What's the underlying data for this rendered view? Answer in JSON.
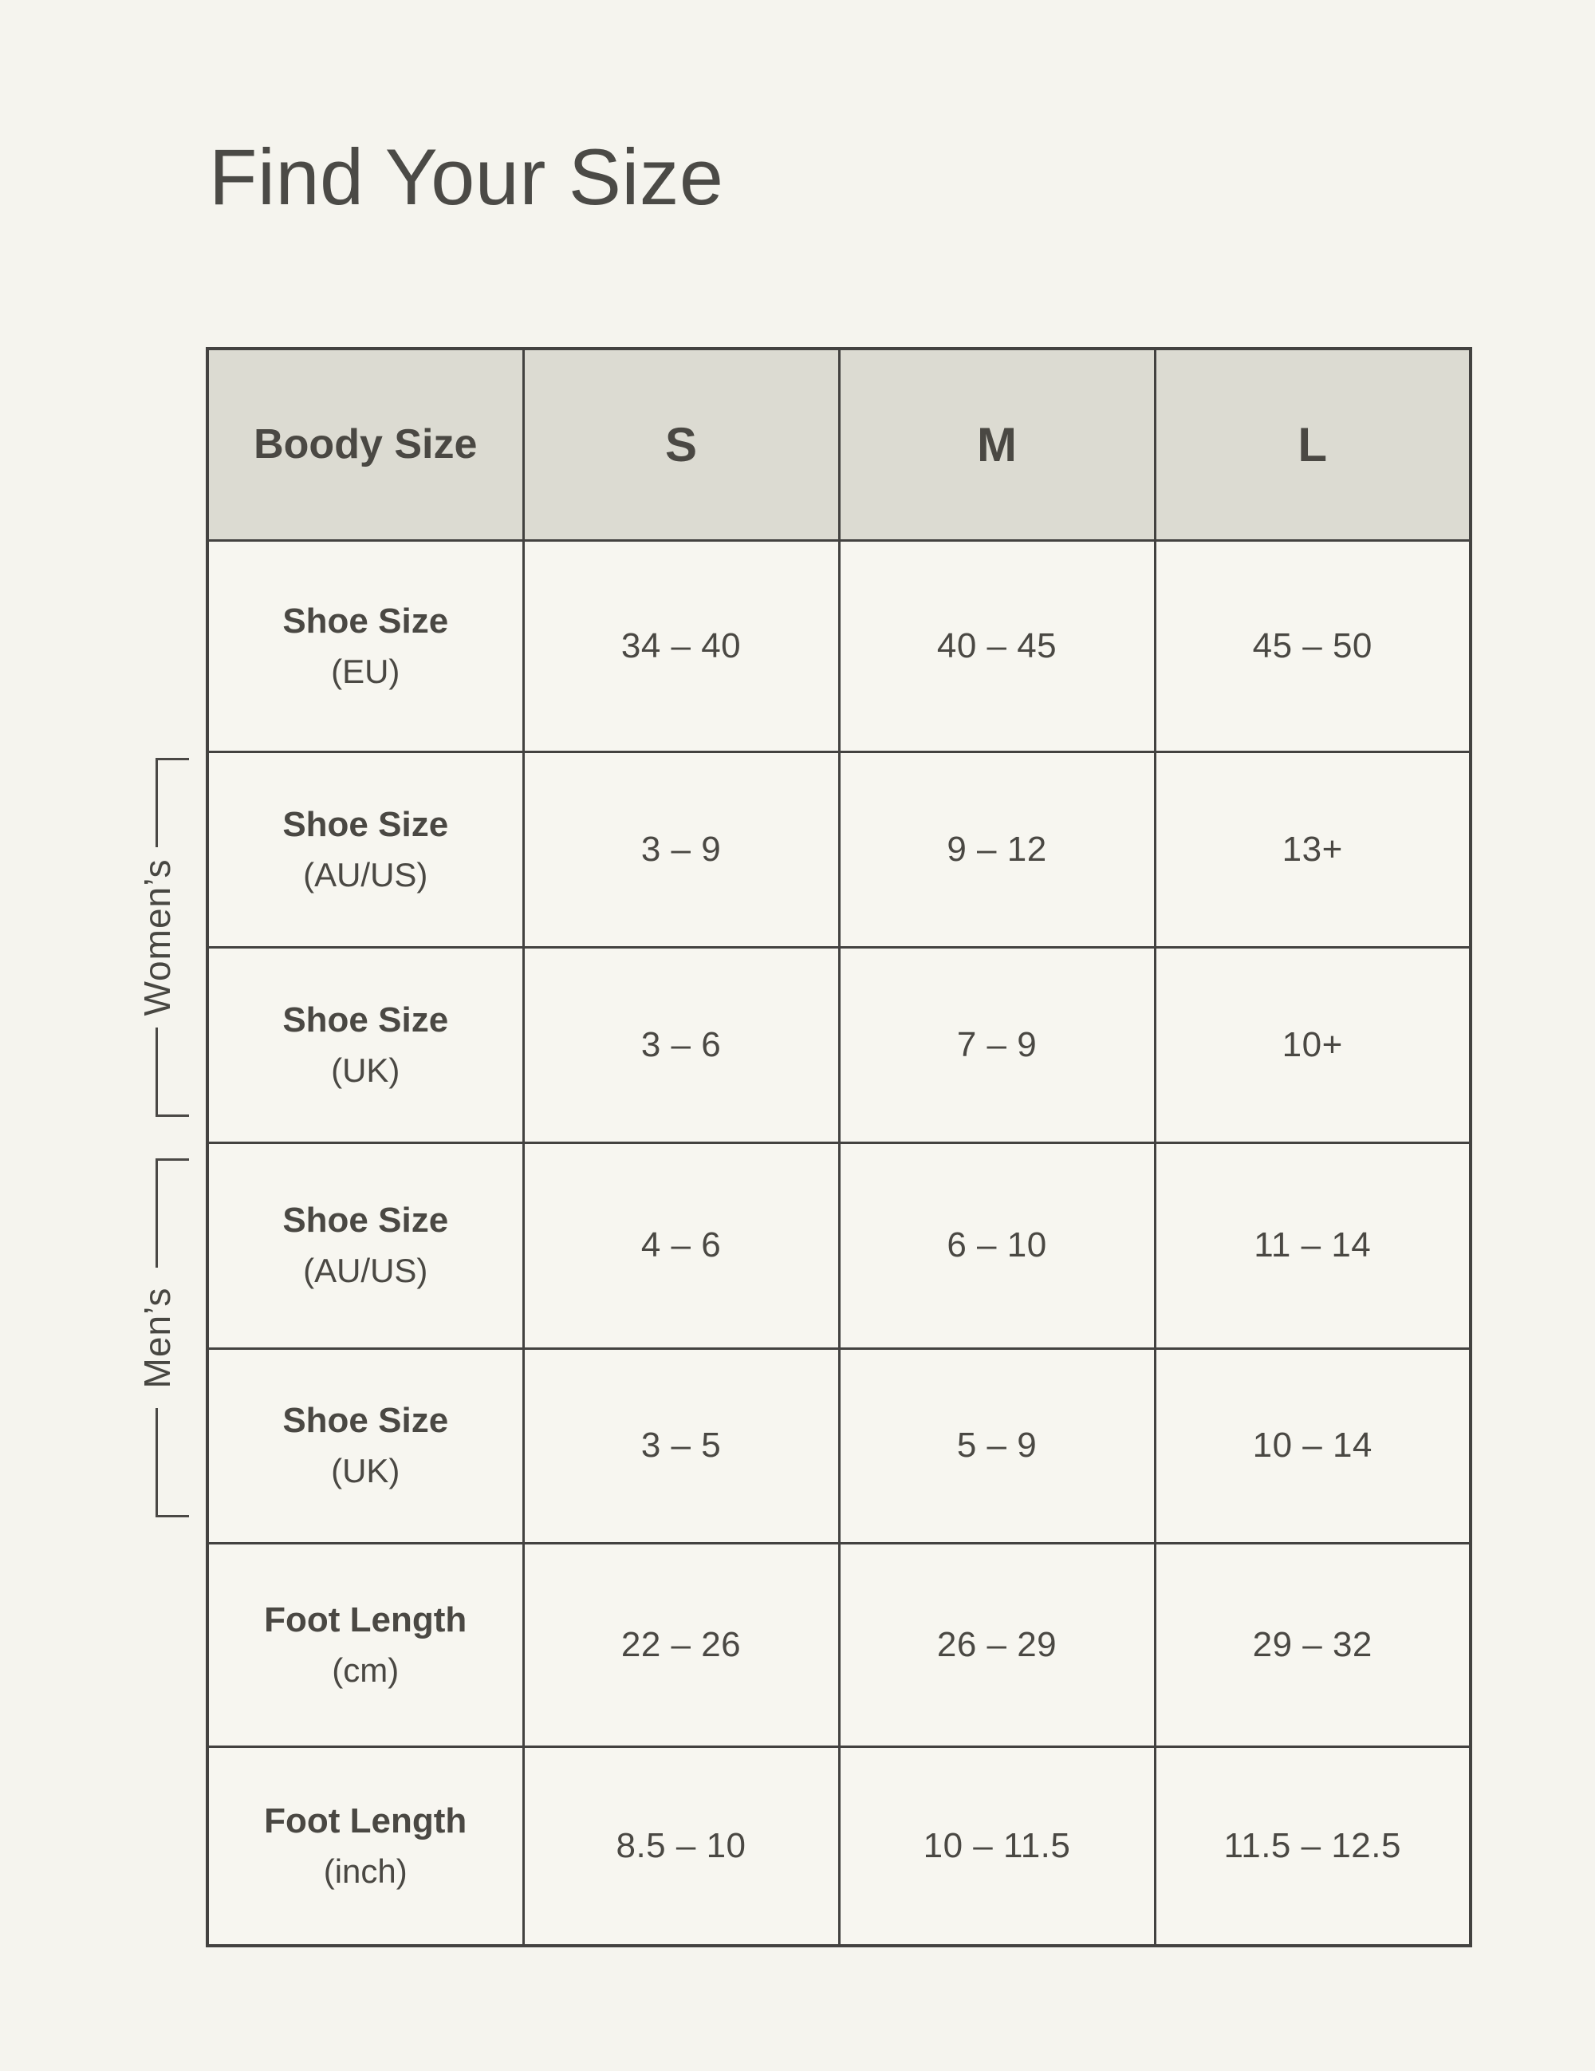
{
  "colors": {
    "page_bg": "#F5F4EE",
    "cell_bg": "#F7F6F0",
    "header_bg": "#DCDBD2",
    "border": "#434240",
    "text": "#4A4945"
  },
  "chart_data": {
    "type": "table",
    "title": "Find Your Size",
    "columns": [
      "Boody Size",
      "S",
      "M",
      "L"
    ],
    "row_groups": [
      {
        "name": "Women’s",
        "row_indexes": [
          1,
          2
        ]
      },
      {
        "name": "Men’s",
        "row_indexes": [
          3,
          4
        ]
      }
    ],
    "rows": [
      {
        "label_main": "Shoe Size",
        "label_sub": "(EU)",
        "cells": [
          "34 – 40",
          "40 – 45",
          "45 – 50"
        ]
      },
      {
        "label_main": "Shoe Size",
        "label_sub": "(AU/US)",
        "cells": [
          "3 – 9",
          "9 – 12",
          "13+"
        ]
      },
      {
        "label_main": "Shoe Size",
        "label_sub": "(UK)",
        "cells": [
          "3 – 6",
          "7 – 9",
          "10+"
        ]
      },
      {
        "label_main": "Shoe Size",
        "label_sub": "(AU/US)",
        "cells": [
          "4 – 6",
          "6 – 10",
          "11 – 14"
        ]
      },
      {
        "label_main": "Shoe Size",
        "label_sub": "(UK)",
        "cells": [
          "3 – 5",
          "5 – 9",
          "10 – 14"
        ]
      },
      {
        "label_main": "Foot Length",
        "label_sub": "(cm)",
        "cells": [
          "22 – 26",
          "26 – 29",
          "29 – 32"
        ]
      },
      {
        "label_main": "Foot Length",
        "label_sub": "(inch)",
        "cells": [
          "8.5 – 10",
          "10 – 11.5",
          "11.5 – 12.5"
        ]
      }
    ]
  }
}
